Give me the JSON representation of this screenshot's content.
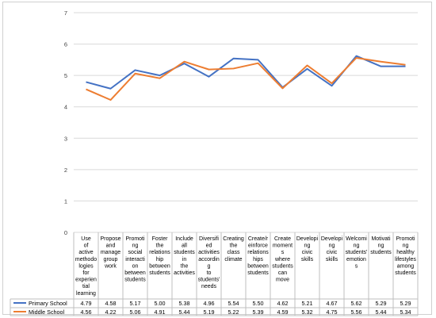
{
  "chart_data": {
    "type": "line",
    "title": "",
    "xlabel": "",
    "ylabel": "",
    "ylim": [
      0,
      7
    ],
    "yticks": [
      "0",
      "1",
      "2",
      "3",
      "4",
      "5",
      "6",
      "7"
    ],
    "grid": true,
    "legend": "data-table-left",
    "categories": [
      "Use of active methodo logies for experien tial learning",
      "Propose and manage group work",
      "Promoti ng social interacti on between students",
      "Foster the relations hip between students",
      "Include all students in the activities",
      "Diversifi ed activities accordin g to students' needs",
      "Creating the class climate",
      "Create/r einforce relations hips between students",
      "Create moment s where students can move",
      "Developi ng civic skills",
      "Developi ng civic skills",
      "Welcomi ng students' emotion s",
      "Motivati ng students",
      "Promoti ng healthy lifestyles among students"
    ],
    "series": [
      {
        "name": "Primary School",
        "color": "#4472c4",
        "values": [
          4.79,
          4.58,
          5.17,
          5.0,
          5.38,
          4.96,
          5.54,
          5.5,
          4.62,
          5.21,
          4.67,
          5.62,
          5.29,
          5.29
        ],
        "labels": [
          "4.79",
          "4.58",
          "5.17",
          "5.00",
          "5.38",
          "4.96",
          "5.54",
          "5.50",
          "4.62",
          "5.21",
          "4.67",
          "5.62",
          "5.29",
          "5.29"
        ]
      },
      {
        "name": "Middle School",
        "color": "#ed7d31",
        "values": [
          4.56,
          4.22,
          5.06,
          4.91,
          5.44,
          5.19,
          5.22,
          5.39,
          4.59,
          5.32,
          4.75,
          5.56,
          5.44,
          5.34
        ],
        "labels": [
          "4.56",
          "4.22",
          "5.06",
          "4.91",
          "5.44",
          "5.19",
          "5.22",
          "5.39",
          "4.59",
          "5.32",
          "4.75",
          "5.56",
          "5.44",
          "5.34"
        ]
      }
    ]
  }
}
